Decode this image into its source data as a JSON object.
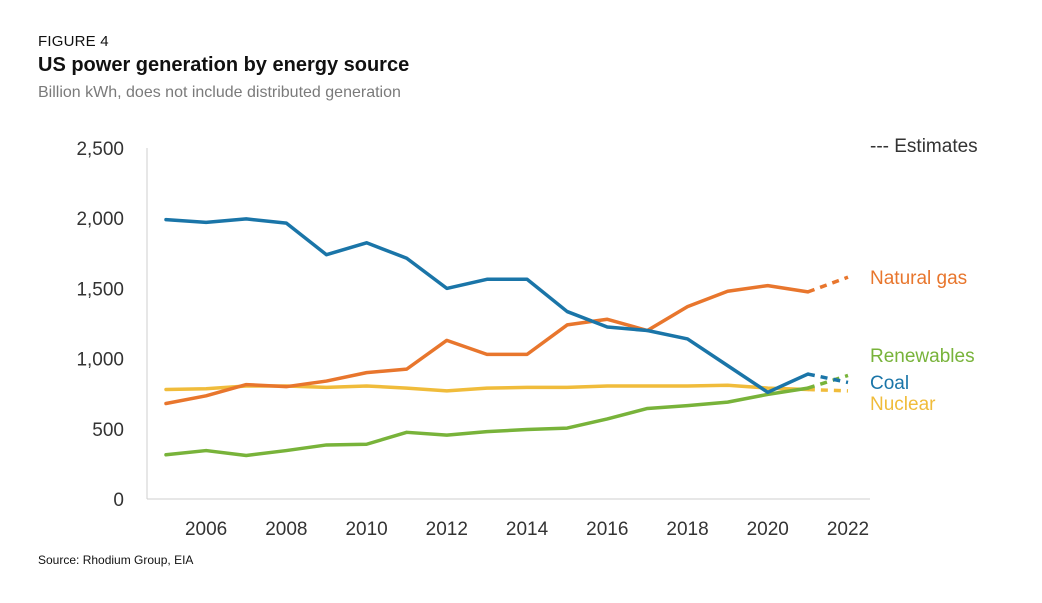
{
  "header": {
    "figure_label": "FIGURE 4",
    "title": "US power generation by energy source",
    "subtitle": "Billion kWh, does not include distributed generation"
  },
  "footer": {
    "source": "Source: Rhodium Group, EIA"
  },
  "legend": {
    "estimates_label": "--- Estimates"
  },
  "chart_data": {
    "type": "line",
    "title": "US power generation by energy source",
    "subtitle": "Billion kWh, does not include distributed generation",
    "xlabel": "",
    "ylabel": "",
    "x": [
      2005,
      2006,
      2007,
      2008,
      2009,
      2010,
      2011,
      2012,
      2013,
      2014,
      2015,
      2016,
      2017,
      2018,
      2019,
      2020,
      2021,
      2022
    ],
    "xticks": [
      2006,
      2008,
      2010,
      2012,
      2014,
      2016,
      2018,
      2020,
      2022
    ],
    "yticks": [
      0,
      500,
      1000,
      1500,
      2000,
      2500
    ],
    "ytick_labels": [
      "0",
      "500",
      "1,000",
      "1,500",
      "2,000",
      "2,500"
    ],
    "xlim": [
      2005,
      2022
    ],
    "ylim": [
      0,
      2500
    ],
    "grid": false,
    "estimate_from": 2021,
    "series": [
      {
        "name": "Coal",
        "color": "#1a75a8",
        "values": [
          1990,
          1970,
          1995,
          1965,
          1740,
          1825,
          1715,
          1500,
          1565,
          1565,
          1335,
          1225,
          1200,
          1140,
          950,
          760,
          890,
          830
        ]
      },
      {
        "name": "Natural gas",
        "color": "#e8762d",
        "values": [
          680,
          735,
          815,
          800,
          840,
          900,
          925,
          1130,
          1030,
          1030,
          1240,
          1280,
          1200,
          1370,
          1480,
          1520,
          1475,
          1580
        ]
      },
      {
        "name": "Nuclear",
        "color": "#f0bc3b",
        "values": [
          780,
          785,
          805,
          805,
          795,
          805,
          790,
          770,
          790,
          795,
          795,
          805,
          805,
          805,
          810,
          790,
          780,
          770
        ]
      },
      {
        "name": "Renewables",
        "color": "#78b33a",
        "values": [
          315,
          345,
          310,
          345,
          385,
          390,
          475,
          455,
          480,
          495,
          505,
          570,
          645,
          665,
          690,
          745,
          790,
          880
        ]
      }
    ]
  }
}
